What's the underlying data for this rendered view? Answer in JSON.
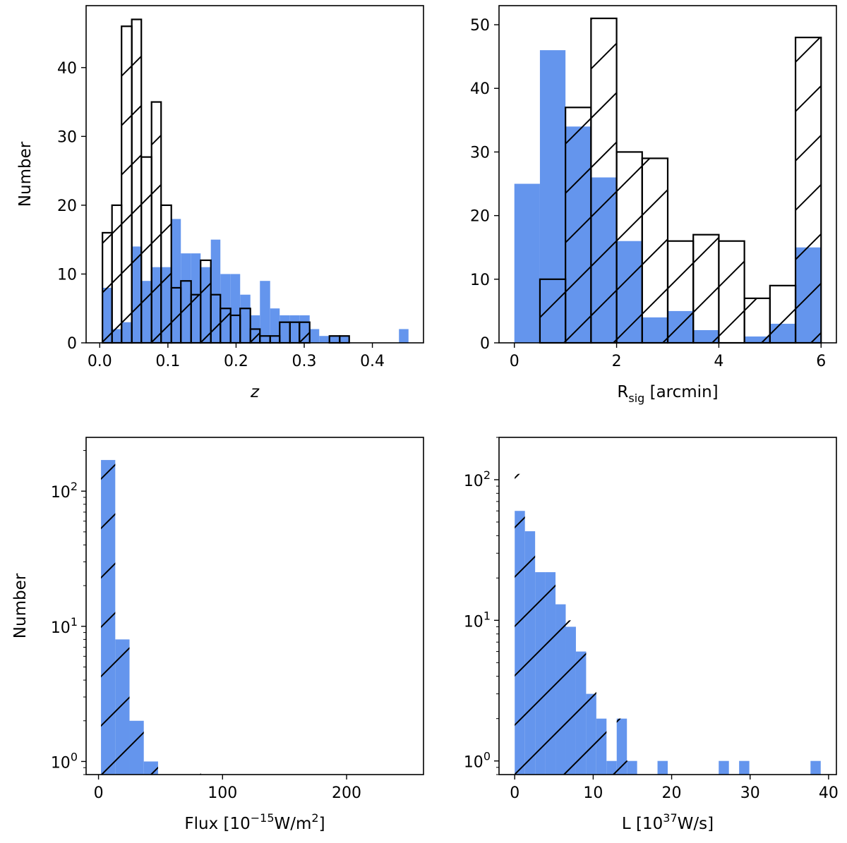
{
  "chart_data": [
    {
      "id": "z",
      "type": "bar",
      "title": "",
      "xlabel": "z",
      "ylabel": "Number",
      "yscale": "linear",
      "xlim": [
        -0.02,
        0.475
      ],
      "ylim": [
        0,
        49
      ],
      "xticks": [
        {
          "v": 0.0,
          "label": "0.0"
        },
        {
          "v": 0.1,
          "label": "0.1"
        },
        {
          "v": 0.2,
          "label": "0.2"
        },
        {
          "v": 0.3,
          "label": "0.3"
        },
        {
          "v": 0.4,
          "label": "0.4"
        }
      ],
      "yticks": [
        {
          "v": 0,
          "label": "0"
        },
        {
          "v": 10,
          "label": "10"
        },
        {
          "v": 20,
          "label": "20"
        },
        {
          "v": 30,
          "label": "30"
        },
        {
          "v": 40,
          "label": "40"
        }
      ],
      "series": [
        {
          "name": "filled",
          "style": "filled",
          "color": "#6495ed",
          "bins": [
            [
              0.004,
              0.018,
              8
            ],
            [
              0.018,
              0.032,
              2
            ],
            [
              0.032,
              0.047,
              3
            ],
            [
              0.047,
              0.061,
              14
            ],
            [
              0.061,
              0.076,
              9
            ],
            [
              0.076,
              0.09,
              11
            ],
            [
              0.09,
              0.105,
              11
            ],
            [
              0.105,
              0.119,
              18
            ],
            [
              0.119,
              0.134,
              13
            ],
            [
              0.134,
              0.148,
              13
            ],
            [
              0.148,
              0.163,
              11
            ],
            [
              0.163,
              0.177,
              15
            ],
            [
              0.177,
              0.192,
              10
            ],
            [
              0.192,
              0.206,
              10
            ],
            [
              0.206,
              0.221,
              7
            ],
            [
              0.221,
              0.235,
              4
            ],
            [
              0.235,
              0.25,
              9
            ],
            [
              0.25,
              0.264,
              5
            ],
            [
              0.264,
              0.279,
              4
            ],
            [
              0.279,
              0.293,
              4
            ],
            [
              0.293,
              0.308,
              4
            ],
            [
              0.308,
              0.322,
              2
            ],
            [
              0.322,
              0.337,
              1
            ],
            [
              0.337,
              0.352,
              1
            ],
            [
              0.352,
              0.366,
              1
            ],
            [
              0.439,
              0.453,
              2
            ]
          ]
        },
        {
          "name": "hatched",
          "style": "outline-hatched",
          "color": "#000000",
          "bins": [
            [
              0.004,
              0.018,
              16
            ],
            [
              0.018,
              0.032,
              20
            ],
            [
              0.032,
              0.047,
              46
            ],
            [
              0.047,
              0.061,
              47
            ],
            [
              0.061,
              0.076,
              27
            ],
            [
              0.076,
              0.09,
              35
            ],
            [
              0.09,
              0.105,
              20
            ],
            [
              0.105,
              0.119,
              8
            ],
            [
              0.119,
              0.134,
              9
            ],
            [
              0.134,
              0.148,
              7
            ],
            [
              0.148,
              0.163,
              12
            ],
            [
              0.163,
              0.177,
              7
            ],
            [
              0.177,
              0.192,
              5
            ],
            [
              0.192,
              0.206,
              4
            ],
            [
              0.206,
              0.221,
              5
            ],
            [
              0.221,
              0.235,
              2
            ],
            [
              0.235,
              0.25,
              1
            ],
            [
              0.25,
              0.264,
              1
            ],
            [
              0.264,
              0.279,
              3
            ],
            [
              0.279,
              0.293,
              3
            ],
            [
              0.293,
              0.308,
              3
            ],
            [
              0.337,
              0.352,
              1
            ],
            [
              0.352,
              0.366,
              1
            ]
          ]
        }
      ]
    },
    {
      "id": "rsig",
      "type": "bar",
      "title": "",
      "xlabel": "R",
      "xlabel_sub": "sig",
      "xlabel_rest": " [arcmin]",
      "ylabel": "",
      "yscale": "linear",
      "xlim": [
        -0.3,
        6.3
      ],
      "ylim": [
        0,
        53
      ],
      "xticks": [
        {
          "v": 0,
          "label": "0"
        },
        {
          "v": 2,
          "label": "2"
        },
        {
          "v": 4,
          "label": "4"
        },
        {
          "v": 6,
          "label": "6"
        }
      ],
      "yticks": [
        {
          "v": 0,
          "label": "0"
        },
        {
          "v": 10,
          "label": "10"
        },
        {
          "v": 20,
          "label": "20"
        },
        {
          "v": 30,
          "label": "30"
        },
        {
          "v": 40,
          "label": "40"
        },
        {
          "v": 50,
          "label": "50"
        }
      ],
      "series": [
        {
          "name": "filled",
          "style": "filled",
          "color": "#6495ed",
          "bins": [
            [
              0,
              0.5,
              25
            ],
            [
              0.5,
              1.0,
              46
            ],
            [
              1.0,
              1.5,
              34
            ],
            [
              1.5,
              2.0,
              26
            ],
            [
              2.0,
              2.5,
              16
            ],
            [
              2.5,
              3.0,
              4
            ],
            [
              3.0,
              3.5,
              5
            ],
            [
              3.5,
              4.0,
              2
            ],
            [
              4.0,
              4.5,
              0
            ],
            [
              4.5,
              5.0,
              1
            ],
            [
              5.0,
              5.5,
              3
            ],
            [
              5.5,
              6.0,
              15
            ]
          ]
        },
        {
          "name": "hatched",
          "style": "outline-hatched",
          "color": "#000000",
          "bins": [
            [
              0.5,
              1.0,
              10
            ],
            [
              1.0,
              1.5,
              37
            ],
            [
              1.5,
              2.0,
              51
            ],
            [
              2.0,
              2.5,
              30
            ],
            [
              2.5,
              3.0,
              29
            ],
            [
              3.0,
              3.5,
              16
            ],
            [
              3.5,
              4.0,
              17
            ],
            [
              4.0,
              4.5,
              16
            ],
            [
              4.5,
              5.0,
              7
            ],
            [
              5.0,
              5.5,
              9
            ],
            [
              5.5,
              6.0,
              48
            ]
          ]
        }
      ]
    },
    {
      "id": "flux",
      "type": "bar",
      "title": "",
      "xlabel": "Flux [10",
      "xlabel_sup": "−15",
      "xlabel_rest": "W/m",
      "xlabel_sup2": "2",
      "xlabel_end": "]",
      "ylabel": "Number",
      "yscale": "log",
      "xlim": [
        -10,
        262
      ],
      "ylim": [
        0.8,
        250
      ],
      "xticks": [
        {
          "v": 0,
          "label": "0"
        },
        {
          "v": 100,
          "label": "100"
        },
        {
          "v": 200,
          "label": "200"
        }
      ],
      "yticks": [
        {
          "v": 1,
          "base": "10",
          "exp": "0"
        },
        {
          "v": 10,
          "base": "10",
          "exp": "1"
        },
        {
          "v": 100,
          "base": "10",
          "exp": "2"
        }
      ],
      "series": [
        {
          "name": "filled",
          "style": "filled",
          "color": "#6495ed",
          "bins": [
            [
              2,
              13.5,
              170
            ],
            [
              13.5,
              25,
              8
            ],
            [
              25,
              36.5,
              2
            ],
            [
              36.5,
              48,
              1
            ]
          ]
        },
        {
          "name": "hatched",
          "style": "hatch-only",
          "color": "#000000",
          "bins": [
            [
              2,
              13.5,
              200
            ],
            [
              13.5,
              25,
              10
            ],
            [
              25,
              36.5,
              2
            ],
            [
              36.5,
              48,
              1
            ],
            [
              71,
              82.5,
              1
            ],
            [
              105,
              116.5,
              1
            ]
          ]
        }
      ]
    },
    {
      "id": "lum",
      "type": "bar",
      "title": "",
      "xlabel": "L [10",
      "xlabel_sup": "37",
      "xlabel_rest": "W/s]",
      "ylabel": "",
      "yscale": "log",
      "xlim": [
        -2,
        41
      ],
      "ylim": [
        0.8,
        200
      ],
      "xticks": [
        {
          "v": 0,
          "label": "0"
        },
        {
          "v": 10,
          "label": "10"
        },
        {
          "v": 20,
          "label": "20"
        },
        {
          "v": 30,
          "label": "30"
        },
        {
          "v": 40,
          "label": "40"
        }
      ],
      "yticks": [
        {
          "v": 1,
          "base": "10",
          "exp": "0"
        },
        {
          "v": 10,
          "base": "10",
          "exp": "1"
        },
        {
          "v": 100,
          "base": "10",
          "exp": "2"
        }
      ],
      "series": [
        {
          "name": "filled",
          "style": "filled",
          "color": "#6495ed",
          "bins": [
            [
              0,
              1.3,
              60
            ],
            [
              1.3,
              2.6,
              43
            ],
            [
              2.6,
              3.9,
              22
            ],
            [
              3.9,
              5.2,
              22
            ],
            [
              5.2,
              6.5,
              13
            ],
            [
              6.5,
              7.8,
              9
            ],
            [
              7.8,
              9.1,
              6
            ],
            [
              9.1,
              10.4,
              3
            ],
            [
              10.4,
              11.7,
              2
            ],
            [
              11.7,
              13.0,
              1
            ],
            [
              13.0,
              14.3,
              2
            ],
            [
              14.3,
              15.6,
              1
            ],
            [
              18.2,
              19.5,
              1
            ],
            [
              26.0,
              27.3,
              1
            ],
            [
              28.6,
              29.9,
              1
            ],
            [
              37.7,
              39.0,
              1
            ]
          ]
        },
        {
          "name": "hatched",
          "style": "hatch-only",
          "color": "#000000",
          "bins": [
            [
              0,
              1.3,
              110
            ],
            [
              1.3,
              2.6,
              50
            ],
            [
              2.6,
              3.9,
              25
            ],
            [
              3.9,
              5.2,
              23
            ],
            [
              5.2,
              6.5,
              15
            ],
            [
              6.5,
              7.8,
              10
            ],
            [
              7.8,
              9.1,
              7
            ],
            [
              9.1,
              10.4,
              4
            ],
            [
              10.4,
              11.7,
              2
            ],
            [
              11.7,
              13.0,
              1
            ],
            [
              13.0,
              14.3,
              2
            ],
            [
              14.3,
              15.6,
              1
            ],
            [
              20.8,
              22.1,
              1
            ]
          ]
        }
      ]
    }
  ]
}
